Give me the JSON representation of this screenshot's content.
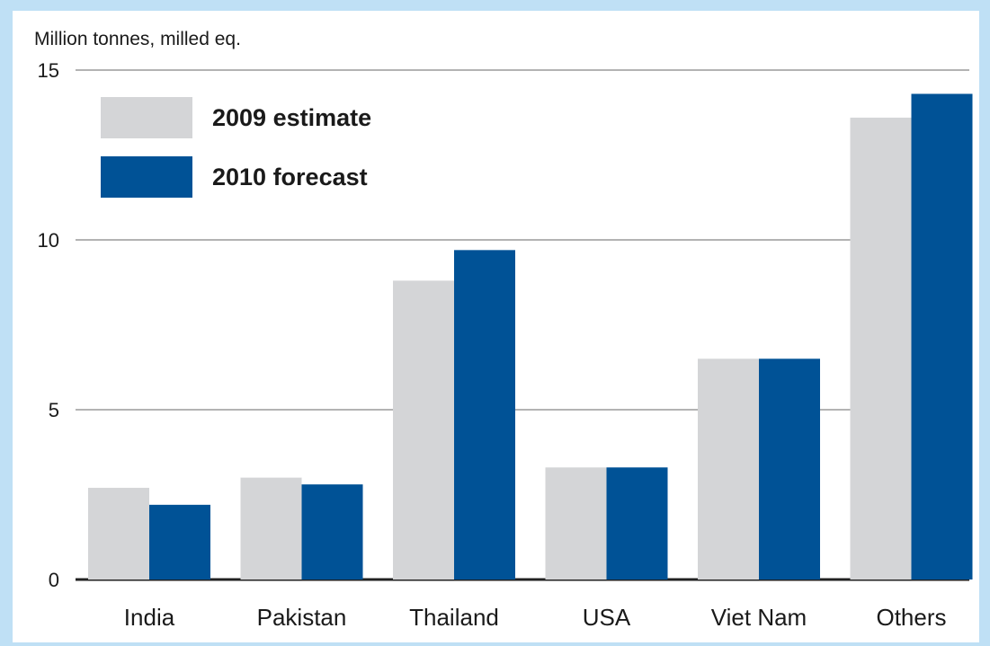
{
  "chart_data": {
    "type": "bar",
    "ylabel": "Million tonnes, milled eq.",
    "categories": [
      "India",
      "Pakistan",
      "Thailand",
      "USA",
      "Viet Nam",
      "Others"
    ],
    "series": [
      {
        "name": "2009 estimate",
        "color": "#d4d5d7",
        "values": [
          2.7,
          3.0,
          8.8,
          3.3,
          6.5,
          13.6
        ]
      },
      {
        "name": "2010 forecast",
        "color": "#005296",
        "values": [
          2.2,
          2.8,
          9.7,
          3.3,
          6.5,
          14.3
        ]
      }
    ],
    "ylim": [
      0,
      15
    ],
    "yticks": [
      0,
      5,
      10,
      15
    ],
    "grid": true,
    "legend_position": "top-left"
  }
}
